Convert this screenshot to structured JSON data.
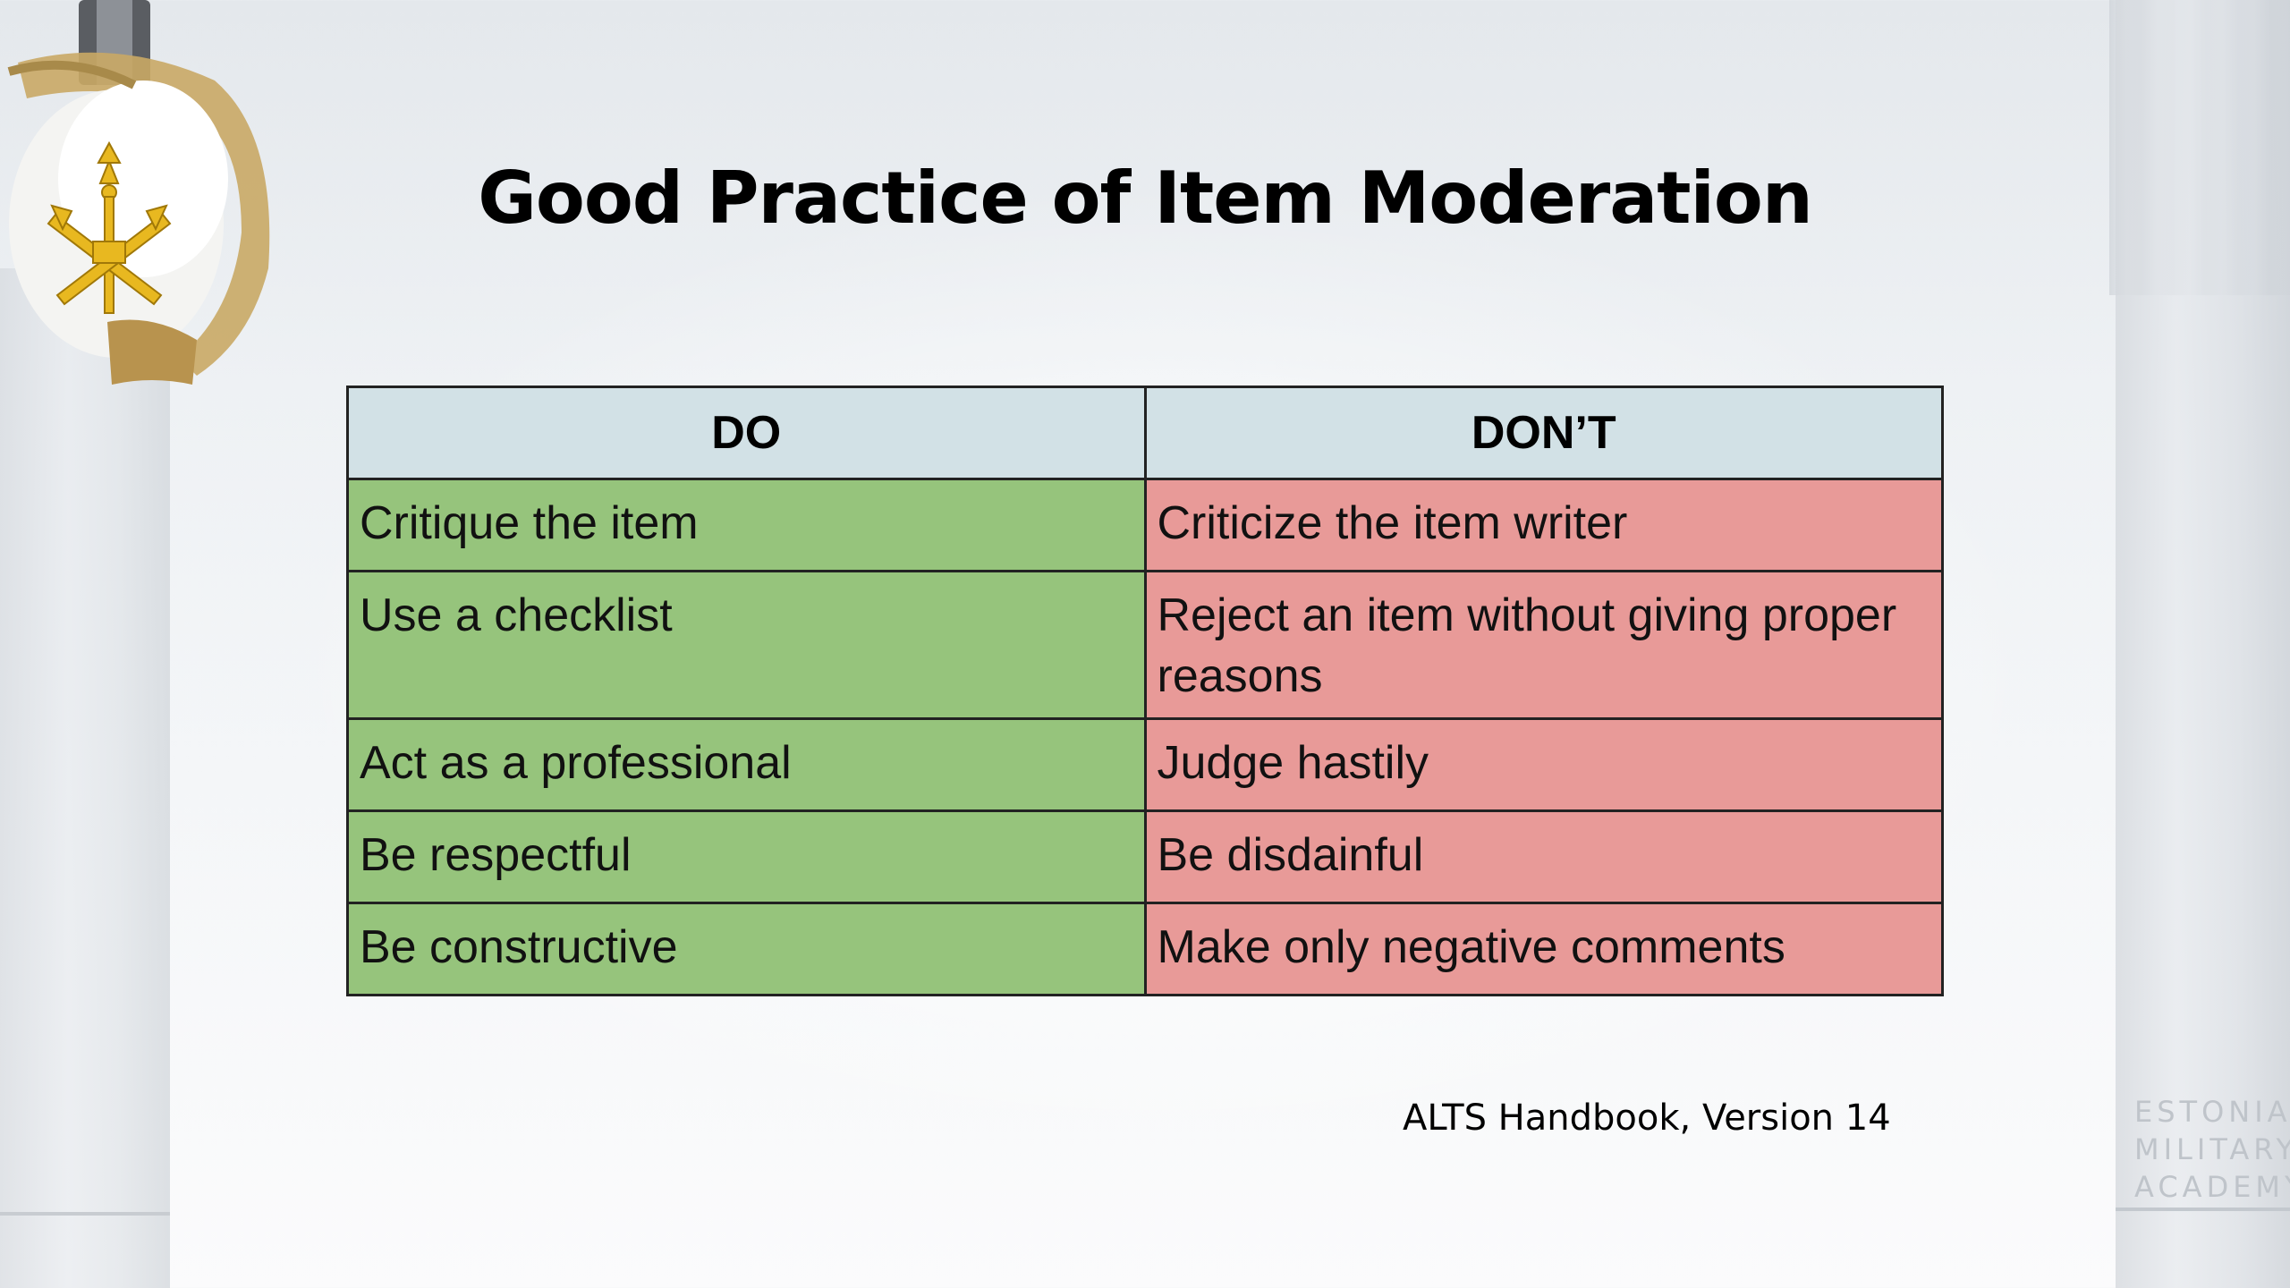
{
  "slide": {
    "title": "Good Practice of Item Moderation",
    "source": "ALTS Handbook, Version 14",
    "watermark": [
      "ESTONIAN",
      "MILITARY",
      "ACADEMY"
    ]
  },
  "table": {
    "headers": [
      "DO",
      "DON’T"
    ],
    "rows": [
      {
        "do": "Critique the item",
        "dont": "Criticize the item writer"
      },
      {
        "do": "Use a checklist",
        "dont": "Reject an item without giving proper reasons"
      },
      {
        "do": "Act as a professional",
        "dont": "Judge hastily"
      },
      {
        "do": "Be respectful",
        "dont": "Be disdainful"
      },
      {
        "do": "Be constructive",
        "dont": "Make only negative comments"
      }
    ]
  },
  "colors": {
    "header_bg": "#d2e1e6",
    "do_bg": "#96c47c",
    "dont_bg": "#e89a98",
    "emblem_gold": "#e8b820"
  },
  "icons": {
    "emblem": "military-academy-emblem-icon",
    "sword": "sabre-hilt-icon"
  }
}
